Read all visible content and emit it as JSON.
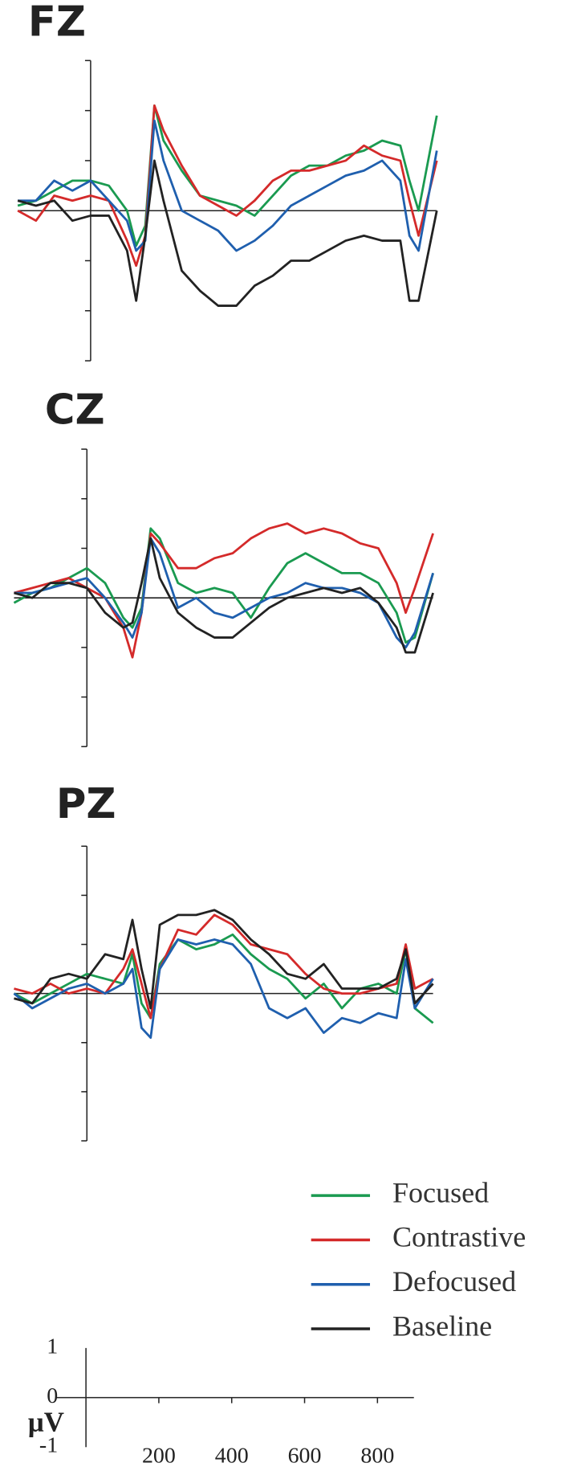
{
  "chart_data": [
    {
      "type": "line",
      "title": "FZ",
      "x": [
        -200,
        -150,
        -100,
        -50,
        0,
        50,
        100,
        125,
        150,
        175,
        200,
        250,
        300,
        350,
        400,
        450,
        500,
        550,
        600,
        650,
        700,
        750,
        800,
        850,
        875,
        900,
        950
      ],
      "xlim": [
        -200,
        950
      ],
      "ylim": [
        -3,
        3
      ],
      "yticks": [
        -3,
        -2,
        -1,
        0,
        1,
        2,
        3
      ],
      "series": [
        {
          "name": "Focused",
          "color": "#1a9a50",
          "values": [
            0.1,
            0.2,
            0.4,
            0.6,
            0.6,
            0.5,
            0.0,
            -0.7,
            -0.3,
            2.1,
            1.4,
            0.8,
            0.3,
            0.2,
            0.1,
            -0.1,
            0.3,
            0.7,
            0.9,
            0.9,
            1.1,
            1.2,
            1.4,
            1.3,
            0.6,
            0.0,
            1.9
          ]
        },
        {
          "name": "Contrastive",
          "color": "#d42a2a",
          "values": [
            0.0,
            -0.2,
            0.3,
            0.2,
            0.3,
            0.2,
            -0.6,
            -1.1,
            -0.5,
            2.1,
            1.6,
            0.9,
            0.3,
            0.1,
            -0.1,
            0.2,
            0.6,
            0.8,
            0.8,
            0.9,
            1.0,
            1.3,
            1.1,
            1.0,
            0.2,
            -0.5,
            1.0
          ]
        },
        {
          "name": "Defocused",
          "color": "#1f5fae",
          "values": [
            0.2,
            0.2,
            0.6,
            0.4,
            0.6,
            0.2,
            -0.2,
            -0.8,
            -0.6,
            1.8,
            1.0,
            0.0,
            -0.2,
            -0.4,
            -0.8,
            -0.6,
            -0.3,
            0.1,
            0.3,
            0.5,
            0.7,
            0.8,
            1.0,
            0.6,
            -0.5,
            -0.8,
            1.2
          ]
        },
        {
          "name": "Baseline",
          "color": "#222222",
          "values": [
            0.2,
            0.1,
            0.2,
            -0.2,
            -0.1,
            -0.1,
            -0.8,
            -1.8,
            -0.5,
            1.0,
            0.2,
            -1.2,
            -1.6,
            -1.9,
            -1.9,
            -1.5,
            -1.3,
            -1.0,
            -1.0,
            -0.8,
            -0.6,
            -0.5,
            -0.6,
            -0.6,
            -1.8,
            -1.8,
            0.0
          ]
        }
      ]
    },
    {
      "type": "line",
      "title": "CZ",
      "x": [
        -200,
        -150,
        -100,
        -50,
        0,
        50,
        100,
        125,
        150,
        175,
        200,
        250,
        300,
        350,
        400,
        450,
        500,
        550,
        600,
        650,
        700,
        750,
        800,
        850,
        875,
        900,
        950
      ],
      "xlim": [
        -200,
        950
      ],
      "ylim": [
        -3,
        3
      ],
      "yticks": [
        -3,
        -2,
        -1,
        0,
        1,
        2,
        3
      ],
      "series": [
        {
          "name": "Focused",
          "color": "#1a9a50",
          "values": [
            -0.1,
            0.1,
            0.2,
            0.4,
            0.6,
            0.3,
            -0.4,
            -0.6,
            -0.2,
            1.4,
            1.2,
            0.3,
            0.1,
            0.2,
            0.1,
            -0.4,
            0.2,
            0.7,
            0.9,
            0.7,
            0.5,
            0.5,
            0.3,
            -0.3,
            -0.9,
            -0.8,
            0.5
          ]
        },
        {
          "name": "Contrastive",
          "color": "#d42a2a",
          "values": [
            0.1,
            0.2,
            0.3,
            0.4,
            0.2,
            0.0,
            -0.6,
            -1.2,
            -0.3,
            1.3,
            1.1,
            0.6,
            0.6,
            0.8,
            0.9,
            1.2,
            1.4,
            1.5,
            1.3,
            1.4,
            1.3,
            1.1,
            1.0,
            0.3,
            -0.3,
            0.2,
            1.3
          ]
        },
        {
          "name": "Defocused",
          "color": "#1f5fae",
          "values": [
            0.1,
            0.1,
            0.2,
            0.3,
            0.4,
            0.0,
            -0.5,
            -0.8,
            -0.3,
            1.2,
            0.9,
            -0.2,
            0.0,
            -0.3,
            -0.4,
            -0.2,
            0.0,
            0.1,
            0.3,
            0.2,
            0.2,
            0.1,
            -0.1,
            -0.8,
            -1.0,
            -0.7,
            0.5
          ]
        },
        {
          "name": "Baseline",
          "color": "#222222",
          "values": [
            0.1,
            0.0,
            0.3,
            0.3,
            0.2,
            -0.3,
            -0.6,
            -0.5,
            0.3,
            1.2,
            0.4,
            -0.3,
            -0.6,
            -0.8,
            -0.8,
            -0.5,
            -0.2,
            0.0,
            0.1,
            0.2,
            0.1,
            0.2,
            -0.1,
            -0.6,
            -1.1,
            -1.1,
            0.1
          ]
        }
      ]
    },
    {
      "type": "line",
      "title": "PZ",
      "x": [
        -200,
        -150,
        -100,
        -50,
        0,
        50,
        100,
        125,
        150,
        175,
        200,
        250,
        300,
        350,
        400,
        450,
        500,
        550,
        600,
        650,
        700,
        750,
        800,
        850,
        875,
        900,
        950
      ],
      "xlim": [
        -200,
        950
      ],
      "ylim": [
        -3,
        3
      ],
      "yticks": [
        -3,
        -2,
        -1,
        0,
        1,
        2,
        3
      ],
      "series": [
        {
          "name": "Focused",
          "color": "#1a9a50",
          "values": [
            0.0,
            -0.2,
            0.0,
            0.2,
            0.4,
            0.3,
            0.2,
            0.8,
            -0.2,
            -0.5,
            0.6,
            1.1,
            0.9,
            1.0,
            1.2,
            0.8,
            0.5,
            0.3,
            -0.1,
            0.2,
            -0.3,
            0.1,
            0.2,
            0.0,
            0.9,
            -0.3,
            -0.6
          ]
        },
        {
          "name": "Contrastive",
          "color": "#d42a2a",
          "values": [
            0.1,
            0.0,
            0.2,
            0.0,
            0.1,
            0.0,
            0.5,
            0.9,
            0.2,
            -0.5,
            0.5,
            1.3,
            1.2,
            1.6,
            1.4,
            1.0,
            0.9,
            0.8,
            0.4,
            0.1,
            0.0,
            0.0,
            0.1,
            0.2,
            1.0,
            0.1,
            0.3
          ]
        },
        {
          "name": "Defocused",
          "color": "#1f5fae",
          "values": [
            0.0,
            -0.3,
            -0.1,
            0.1,
            0.2,
            0.0,
            0.2,
            0.5,
            -0.7,
            -0.9,
            0.5,
            1.1,
            1.0,
            1.1,
            1.0,
            0.6,
            -0.3,
            -0.5,
            -0.3,
            -0.8,
            -0.5,
            -0.6,
            -0.4,
            -0.5,
            0.7,
            -0.3,
            0.3
          ]
        },
        {
          "name": "Baseline",
          "color": "#222222",
          "values": [
            -0.1,
            -0.2,
            0.3,
            0.4,
            0.3,
            0.8,
            0.7,
            1.5,
            0.5,
            -0.3,
            1.4,
            1.6,
            1.6,
            1.7,
            1.5,
            1.1,
            0.8,
            0.4,
            0.3,
            0.6,
            0.1,
            0.1,
            0.1,
            0.3,
            0.9,
            -0.2,
            0.2
          ]
        }
      ]
    },
    {
      "type": "scale",
      "ylabel": "μV",
      "ylim": [
        -1,
        1
      ],
      "yticks": [
        -1,
        0,
        1
      ],
      "xlim": [
        -80,
        900
      ],
      "xticks": [
        200,
        400,
        600,
        800
      ]
    }
  ]
}
